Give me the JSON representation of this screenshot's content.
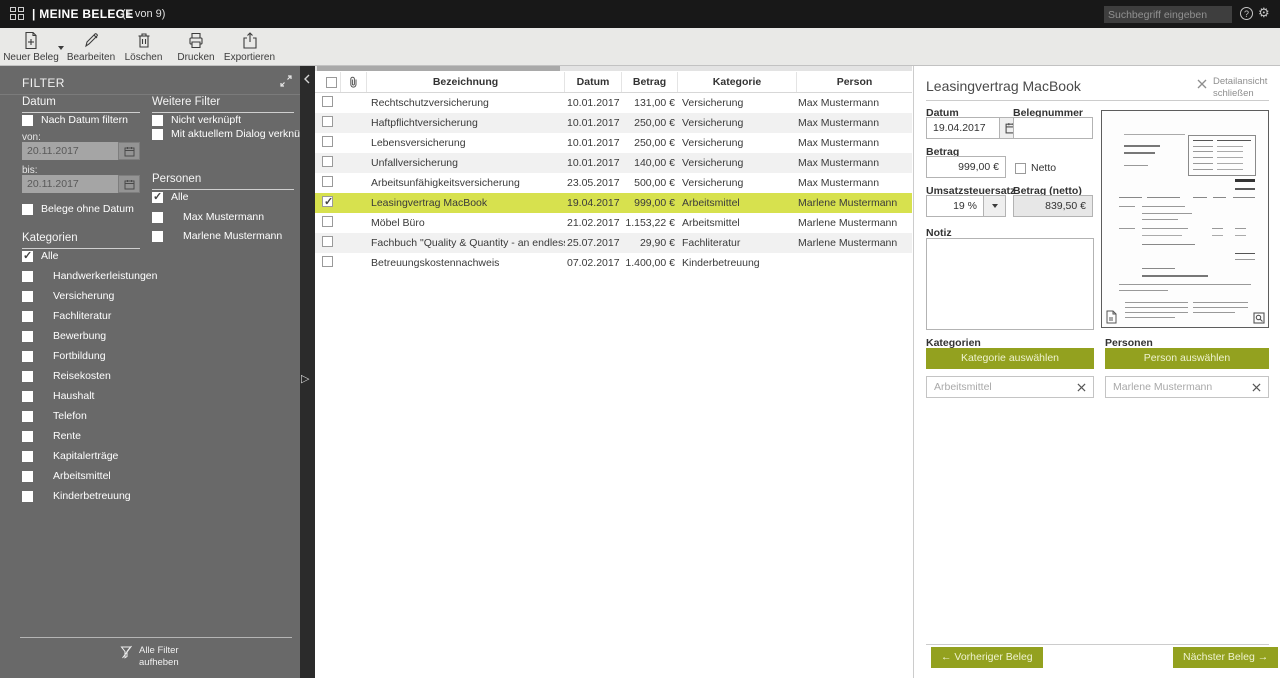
{
  "topbar": {
    "title": "| MEINE BELEGE",
    "count": "(1 von 9)",
    "search_placeholder": "Suchbegriff eingeben"
  },
  "toolbar": {
    "buttons": [
      {
        "label": "Neuer Beleg"
      },
      {
        "label": "Bearbeiten"
      },
      {
        "label": "Löschen"
      },
      {
        "label": "Drucken"
      },
      {
        "label": "Exportieren"
      }
    ]
  },
  "filter": {
    "title": "FILTER",
    "datum": {
      "heading": "Datum",
      "filter_by_date_label": "Nach Datum filtern",
      "von_label": "von:",
      "von_value": "20.11.2017",
      "bis_label": "bis:",
      "bis_value": "20.11.2017",
      "no_date_label": "Belege ohne Datum"
    },
    "weitere": {
      "heading": "Weitere Filter",
      "items": [
        "Nicht verknüpft",
        "Mit aktuellem Dialog verknüpft"
      ]
    },
    "personen": {
      "heading": "Personen",
      "alle_label": "Alle",
      "items": [
        "Max Mustermann",
        "Marlene Mustermann"
      ]
    },
    "kategorien": {
      "heading": "Kategorien",
      "alle_label": "Alle",
      "items": [
        "Handwerkerleistungen",
        "Versicherung",
        "Fachliteratur",
        "Bewerbung",
        "Fortbildung",
        "Reisekosten",
        "Haushalt",
        "Telefon",
        "Rente",
        "Kapitalerträge",
        "Arbeitsmittel",
        "Kinderbetreuung"
      ]
    },
    "clear_line1": "Alle Filter",
    "clear_line2": "aufheben"
  },
  "table": {
    "columns": [
      "Bezeichnung",
      "Datum",
      "Betrag",
      "Kategorie",
      "Person"
    ],
    "rows": [
      {
        "bezeichnung": "Rechtschutzversicherung",
        "datum": "10.01.2017",
        "betrag": "131,00 €",
        "kategorie": "Versicherung",
        "person": "Max Mustermann",
        "selected": false,
        "checked": false
      },
      {
        "bezeichnung": "Haftpflichtversicherung",
        "datum": "10.01.2017",
        "betrag": "250,00 €",
        "kategorie": "Versicherung",
        "person": "Max Mustermann",
        "selected": false,
        "checked": false
      },
      {
        "bezeichnung": "Lebensversicherung",
        "datum": "10.01.2017",
        "betrag": "250,00 €",
        "kategorie": "Versicherung",
        "person": "Max Mustermann",
        "selected": false,
        "checked": false
      },
      {
        "bezeichnung": "Unfallversicherung",
        "datum": "10.01.2017",
        "betrag": "140,00 €",
        "kategorie": "Versicherung",
        "person": "Max Mustermann",
        "selected": false,
        "checked": false
      },
      {
        "bezeichnung": "Arbeitsunfähigkeitsversicherung",
        "datum": "23.05.2017",
        "betrag": "500,00 €",
        "kategorie": "Versicherung",
        "person": "Max Mustermann",
        "selected": false,
        "checked": false
      },
      {
        "bezeichnung": "Leasingvertrag MacBook",
        "datum": "19.04.2017",
        "betrag": "999,00 €",
        "kategorie": "Arbeitsmittel",
        "person": "Marlene Mustermann",
        "selected": true,
        "checked": true
      },
      {
        "bezeichnung": "Möbel Büro",
        "datum": "21.02.2017",
        "betrag": "1.153,22 €",
        "kategorie": "Arbeitsmittel",
        "person": "Marlene Mustermann",
        "selected": false,
        "checked": false
      },
      {
        "bezeichnung": "Fachbuch \"Quality & Quantity - an endless e...",
        "datum": "25.07.2017",
        "betrag": "29,90 €",
        "kategorie": "Fachliteratur",
        "person": "Marlene Mustermann",
        "selected": false,
        "checked": false
      },
      {
        "bezeichnung": "Betreuungskostennachweis",
        "datum": "07.02.2017",
        "betrag": "1.400,00 €",
        "kategorie": "Kinderbetreuung",
        "person": "",
        "selected": false,
        "checked": false
      }
    ]
  },
  "detail": {
    "title": "Leasingvertrag MacBook",
    "close_label_line1": "Detailansicht",
    "close_label_line2": "schließen",
    "datum_label": "Datum",
    "datum_value": "19.04.2017",
    "belegnummer_label": "Belegnummer",
    "belegnummer_value": "",
    "betrag_label": "Betrag",
    "betrag_value": "999,00  €",
    "netto_label": "Netto",
    "ust_label": "Umsatzsteuersatz",
    "ust_value": "19  %",
    "betrag_netto_label": "Betrag (netto)",
    "betrag_netto_value": "839,50  €",
    "notiz_label": "Notiz",
    "kategorien_label": "Kategorien",
    "kategorie_button": "Kategorie auswählen",
    "kategorie_tag": "Arbeitsmittel",
    "personen_label": "Personen",
    "person_button": "Person auswählen",
    "person_tag": "Marlene Mustermann",
    "prev_button": "←   Vorheriger Beleg",
    "next_button": "Nächster Beleg   →"
  },
  "colors": {
    "accent_green": "#93a11f",
    "row_highlight": "#d7e14e",
    "topbar_bg": "#181818",
    "sidebar_bg": "#696969"
  }
}
